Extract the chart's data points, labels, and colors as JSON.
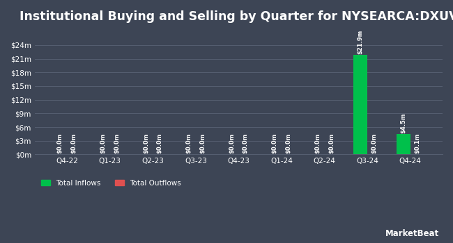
{
  "title": "Institutional Buying and Selling by Quarter for NYSEARCA:DXUV",
  "quarters": [
    "Q4-22",
    "Q1-23",
    "Q2-23",
    "Q3-23",
    "Q4-23",
    "Q1-24",
    "Q2-24",
    "Q3-24",
    "Q4-24"
  ],
  "inflows": [
    0.0,
    0.0,
    0.0,
    0.0,
    0.0,
    0.0,
    0.0,
    21.9,
    4.5
  ],
  "outflows": [
    0.0,
    0.0,
    0.0,
    0.0,
    0.0,
    0.0,
    0.0,
    0.0,
    0.1
  ],
  "inflow_labels": [
    "$0.0m",
    "$0.0m",
    "$0.0m",
    "$0.0m",
    "$0.0m",
    "$0.0m",
    "$0.0m",
    "$21.9m",
    "$4.5m"
  ],
  "outflow_labels": [
    "$0.0m",
    "$0.0m",
    "$0.0m",
    "$0.0m",
    "$0.0m",
    "$0.0m",
    "$0.0m",
    "$0.0m",
    "$0.1m"
  ],
  "inflow_color": "#00c04b",
  "outflow_color": "#e05050",
  "background_color": "#3d4555",
  "grid_color": "#555e70",
  "text_color": "#ffffff",
  "title_fontsize": 12.5,
  "label_fontsize": 6.0,
  "tick_fontsize": 7.5,
  "legend_fontsize": 7.5,
  "yticks": [
    0,
    3,
    6,
    9,
    12,
    15,
    18,
    21,
    24
  ],
  "ytick_labels": [
    "$0m",
    "$3m",
    "$6m",
    "$9m",
    "$12m",
    "$15m",
    "$18m",
    "$21m",
    "$24m"
  ],
  "ylim": [
    0,
    26.5
  ],
  "bar_width": 0.32,
  "watermark": "⽏ MarketBeat"
}
